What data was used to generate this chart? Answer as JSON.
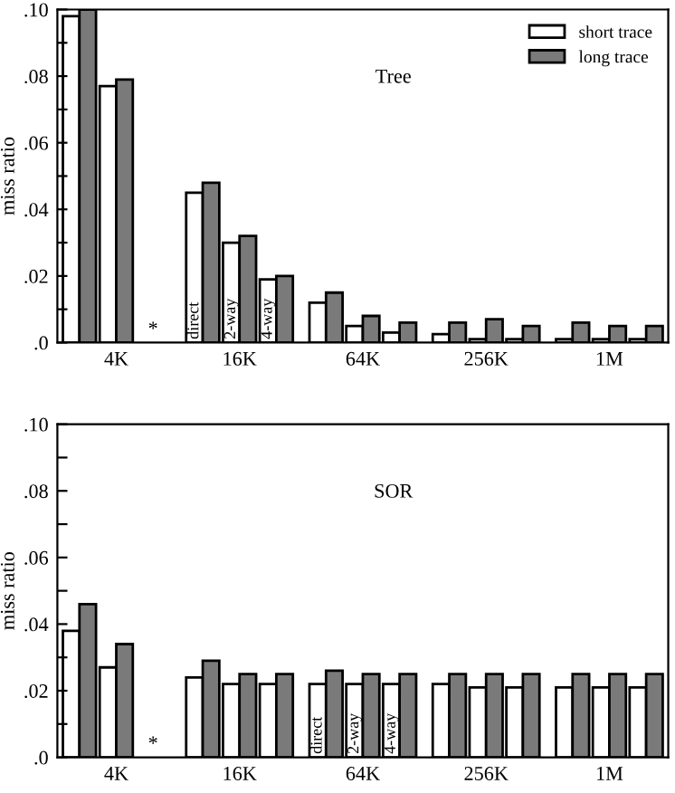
{
  "chart_data": [
    {
      "type": "bar",
      "title": "Tree",
      "ylabel": "miss ratio",
      "categories": [
        null,
        "4K",
        null,
        null,
        "16K",
        null,
        null,
        "64K",
        null,
        null,
        "256K",
        null,
        null,
        "1M",
        null
      ],
      "series": [
        {
          "name": "short trace",
          "color": "#ffffff",
          "values": [
            0.098,
            0.077,
            null,
            0.045,
            0.03,
            0.019,
            0.012,
            0.005,
            0.003,
            0.0025,
            0.001,
            0.001,
            0.001,
            0.001,
            0.001
          ]
        },
        {
          "name": "long trace",
          "color": "#7a7a7a",
          "values": [
            0.1,
            0.079,
            null,
            0.048,
            0.032,
            0.02,
            0.015,
            0.008,
            0.006,
            0.006,
            0.007,
            0.005,
            0.006,
            0.005,
            0.005
          ]
        }
      ],
      "annotations": [
        "*",
        "direct",
        "2-way",
        "4-way"
      ],
      "ylim": [
        0,
        0.1
      ],
      "yticks": [
        {
          "value": 0,
          "label": ".0"
        },
        {
          "value": 0.01,
          "label": null
        },
        {
          "value": 0.02,
          "label": ".02"
        },
        {
          "value": 0.03,
          "label": null
        },
        {
          "value": 0.04,
          "label": ".04"
        },
        {
          "value": 0.05,
          "label": null
        },
        {
          "value": 0.06,
          "label": ".06"
        },
        {
          "value": 0.07,
          "label": null
        },
        {
          "value": 0.08,
          "label": ".08"
        },
        {
          "value": 0.09,
          "label": null
        },
        {
          "value": 0.1,
          "label": ".10"
        }
      ],
      "legend": "top right",
      "grid": false
    },
    {
      "type": "bar",
      "title": "SOR",
      "ylabel": "miss ratio",
      "categories": [
        null,
        "4K",
        null,
        null,
        "16K",
        null,
        null,
        "64K",
        null,
        null,
        "256K",
        null,
        null,
        "1M",
        null
      ],
      "series": [
        {
          "color": "#ffffff",
          "values": [
            0.038,
            0.027,
            null,
            0.024,
            0.022,
            0.022,
            0.022,
            0.022,
            0.022,
            0.022,
            0.021,
            0.021,
            0.021,
            0.021,
            0.021
          ]
        },
        {
          "color": "#7a7a7a",
          "values": [
            0.046,
            0.034,
            null,
            0.029,
            0.025,
            0.025,
            0.026,
            0.025,
            0.025,
            0.025,
            0.025,
            0.025,
            0.025,
            0.025,
            0.025
          ]
        }
      ],
      "annotations": [
        "*",
        "direct",
        "2-way",
        "4-way"
      ],
      "ylim": [
        0,
        0.1
      ],
      "yticks": [
        {
          "value": 0,
          "label": ".0"
        },
        {
          "value": 0.01,
          "label": null
        },
        {
          "value": 0.02,
          "label": ".02"
        },
        {
          "value": 0.03,
          "label": null
        },
        {
          "value": 0.04,
          "label": ".04"
        },
        {
          "value": 0.05,
          "label": null
        },
        {
          "value": 0.06,
          "label": ".06"
        },
        {
          "value": 0.07,
          "label": null
        },
        {
          "value": 0.08,
          "label": ".08"
        },
        {
          "value": 0.09,
          "label": null
        },
        {
          "value": 0.1,
          "label": ".10"
        }
      ],
      "grid": false
    }
  ]
}
